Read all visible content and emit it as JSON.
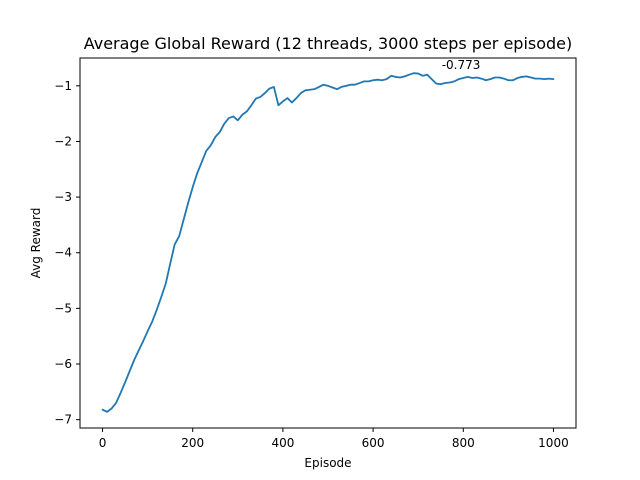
{
  "chart_data": {
    "type": "line",
    "title": "Average Global Reward (12 threads, 3000 steps per episode)",
    "xlabel": "Episode",
    "ylabel": "Avg Reward",
    "xlim": [
      -50,
      1050
    ],
    "ylim": [
      -7.15,
      -0.5
    ],
    "xticks": [
      0,
      200,
      400,
      600,
      800,
      1000
    ],
    "xtick_labels": [
      "0",
      "200",
      "400",
      "600",
      "800",
      "1000"
    ],
    "yticks": [
      -7,
      -6,
      -5,
      -4,
      -3,
      -2,
      -1
    ],
    "ytick_labels": [
      "−7",
      "−6",
      "−5",
      "−4",
      "−3",
      "−2",
      "−1"
    ],
    "grid": false,
    "series": [
      {
        "color": "#1f77b4",
        "x": [
          0,
          10,
          20,
          30,
          40,
          50,
          60,
          70,
          80,
          90,
          100,
          110,
          120,
          130,
          140,
          150,
          160,
          170,
          180,
          190,
          200,
          210,
          220,
          230,
          240,
          250,
          260,
          270,
          280,
          290,
          300,
          310,
          320,
          330,
          340,
          350,
          360,
          370,
          380,
          390,
          400,
          410,
          420,
          430,
          440,
          450,
          460,
          470,
          480,
          490,
          500,
          510,
          520,
          530,
          540,
          550,
          560,
          570,
          580,
          590,
          600,
          610,
          620,
          630,
          640,
          650,
          660,
          670,
          680,
          690,
          700,
          710,
          720,
          730,
          740,
          750,
          760,
          770,
          780,
          790,
          800,
          810,
          820,
          830,
          840,
          850,
          860,
          870,
          880,
          890,
          900,
          910,
          920,
          930,
          940,
          950,
          960,
          970,
          980,
          990,
          1000
        ],
        "y": [
          -6.82,
          -6.86,
          -6.8,
          -6.7,
          -6.52,
          -6.33,
          -6.13,
          -5.93,
          -5.76,
          -5.59,
          -5.41,
          -5.24,
          -5.03,
          -4.8,
          -4.56,
          -4.2,
          -3.85,
          -3.7,
          -3.4,
          -3.1,
          -2.82,
          -2.57,
          -2.37,
          -2.17,
          -2.07,
          -1.92,
          -1.83,
          -1.68,
          -1.58,
          -1.55,
          -1.62,
          -1.52,
          -1.46,
          -1.35,
          -1.23,
          -1.2,
          -1.13,
          -1.05,
          -1.02,
          -1.35,
          -1.28,
          -1.22,
          -1.3,
          -1.22,
          -1.13,
          -1.08,
          -1.07,
          -1.06,
          -1.02,
          -0.98,
          -1.0,
          -1.03,
          -1.06,
          -1.02,
          -1.0,
          -0.98,
          -0.98,
          -0.95,
          -0.92,
          -0.92,
          -0.9,
          -0.89,
          -0.9,
          -0.88,
          -0.82,
          -0.84,
          -0.85,
          -0.83,
          -0.8,
          -0.773,
          -0.78,
          -0.82,
          -0.8,
          -0.88,
          -0.96,
          -0.97,
          -0.95,
          -0.94,
          -0.92,
          -0.88,
          -0.86,
          -0.84,
          -0.86,
          -0.85,
          -0.87,
          -0.9,
          -0.88,
          -0.85,
          -0.85,
          -0.87,
          -0.9,
          -0.9,
          -0.86,
          -0.84,
          -0.83,
          -0.85,
          -0.87,
          -0.87,
          -0.88,
          -0.87,
          -0.88
        ]
      }
    ],
    "annotations": [
      {
        "text": "-0.773",
        "x": 730,
        "y": -0.773
      }
    ]
  }
}
